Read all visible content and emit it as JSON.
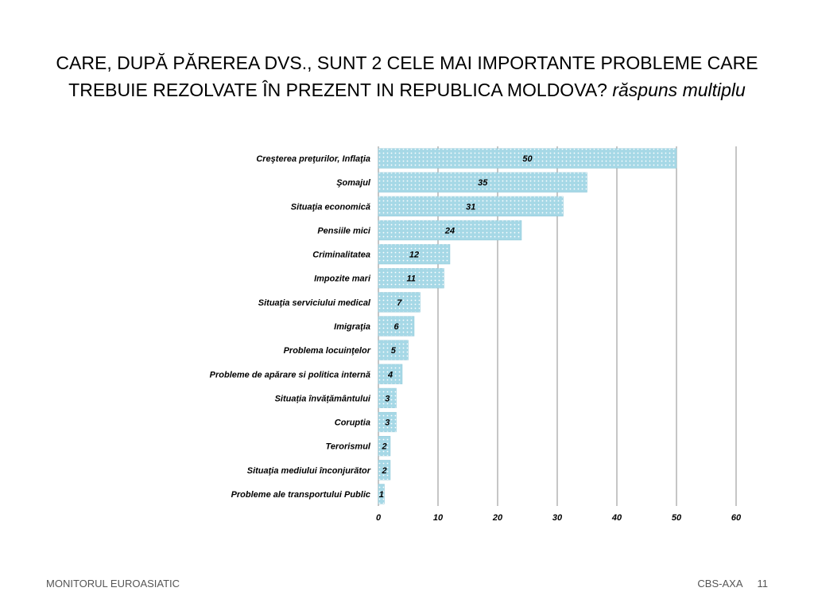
{
  "slide": {
    "title_line1": "CARE, DUPĂ PĂREREA DVS., SUNT 2 CELE MAI IMPORTANTE PROBLEME CARE",
    "title_line2": "TREBUIE REZOLVATE ÎN PREZENT IN REPUBLICA MOLDOVA?",
    "title_emphasis": "răspuns multiplu",
    "footer_left": "MONITORUL  EUROASIATIC",
    "footer_right": "CBS-AXA",
    "page_number": "11"
  },
  "chart_data": {
    "type": "bar",
    "orientation": "horizontal",
    "categories": [
      "Creşterea preţurilor, Inflaţia",
      "Şomajul",
      "Situaţia economică",
      "Pensiile mici",
      "Criminalitatea",
      "Impozite mari",
      "Situaţia serviciului medical",
      "Imigraţia",
      "Problema locuinţelor",
      "Probleme de apărare si politica internă",
      "Situația învățământului",
      "Coruptia",
      "Terorismul",
      "Situaţia mediului înconjurător",
      "Probleme ale transportului Public"
    ],
    "values": [
      50,
      35,
      31,
      24,
      12,
      11,
      7,
      6,
      5,
      4,
      3,
      3,
      2,
      2,
      1
    ],
    "xlim": [
      0,
      60
    ],
    "xticks": [
      0,
      10,
      20,
      30,
      40,
      50,
      60
    ],
    "grid": "vertical",
    "bar_color": "#a6d8e6",
    "bar_dot_color": "#ffffff"
  }
}
